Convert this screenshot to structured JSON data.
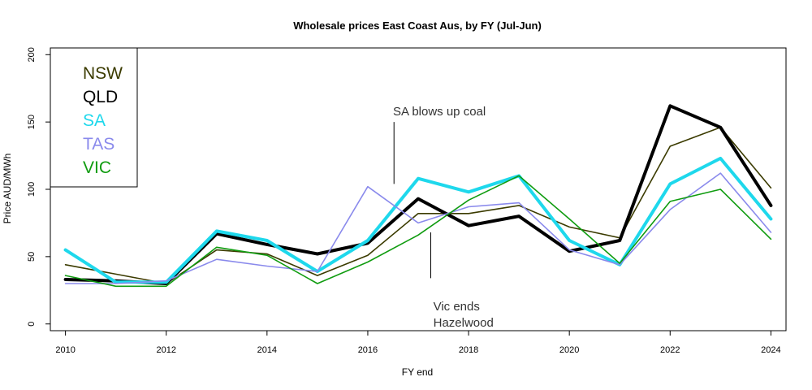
{
  "chart_data": {
    "type": "line",
    "title": "Wholesale prices East Coast Aus, by FY (Jul-Jun)",
    "xlabel": "FY end",
    "ylabel": "Price AUD/MWh",
    "xlim": [
      2009.7,
      2024.3
    ],
    "ylim": [
      -5,
      205
    ],
    "xticks": [
      2010,
      2012,
      2014,
      2016,
      2018,
      2020,
      2022,
      2024
    ],
    "yticks": [
      0,
      50,
      100,
      150,
      200
    ],
    "x": [
      2010,
      2011,
      2012,
      2013,
      2014,
      2015,
      2016,
      2017,
      2018,
      2019,
      2020,
      2021,
      2022,
      2023,
      2024
    ],
    "legend_position": "top-left",
    "series": [
      {
        "name": "NSW",
        "color": "#3b3b00",
        "width": 1.6,
        "values": [
          44,
          37,
          30,
          55,
          52,
          36,
          51,
          82,
          82,
          88,
          72,
          64,
          132,
          146,
          101
        ]
      },
      {
        "name": "QLD",
        "color": "#000000",
        "width": 4,
        "values": [
          33,
          32,
          30,
          67,
          59,
          52,
          60,
          93,
          73,
          80,
          54,
          62,
          162,
          146,
          88
        ]
      },
      {
        "name": "SA",
        "color": "#1ed8ec",
        "width": 4,
        "values": [
          55,
          31,
          31,
          69,
          62,
          39,
          62,
          108,
          98,
          110,
          62,
          44,
          104,
          123,
          78
        ]
      },
      {
        "name": "TAS",
        "color": "#8a8aec",
        "width": 1.6,
        "values": [
          30,
          30,
          32,
          48,
          43,
          39,
          102,
          75,
          87,
          90,
          55,
          44,
          85,
          112,
          68
        ]
      },
      {
        "name": "VIC",
        "color": "#109c10",
        "width": 1.6,
        "values": [
          36,
          28,
          28,
          57,
          51,
          30,
          46,
          66,
          92,
          110,
          78,
          45,
          91,
          100,
          63
        ]
      }
    ],
    "annotations": [
      {
        "text": "SA blows up coal",
        "x": 2016.5,
        "y": 155,
        "line_x": 2016.52,
        "line_from": 104,
        "line_to": 150
      },
      {
        "text": "Vic ends",
        "x": 2017.3,
        "y": 10,
        "line_x": 2017.25,
        "line_from": 34,
        "line_to": 68
      },
      {
        "text": "Hazelwood",
        "x": 2017.3,
        "y": -2
      }
    ]
  }
}
